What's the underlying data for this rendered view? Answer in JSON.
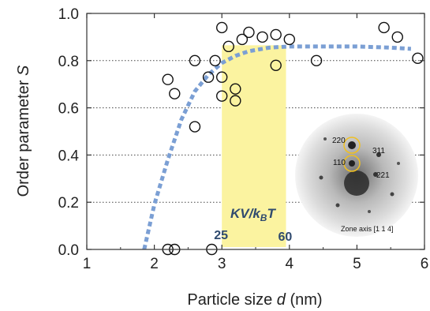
{
  "chart_data": {
    "type": "scatter",
    "xlabel": "Particle size",
    "xlabel_symbol": "d",
    "xlabel_unit": "(nm)",
    "ylabel": "Order parameter",
    "ylabel_symbol": "S",
    "xlim": [
      1,
      6
    ],
    "ylim": [
      0.0,
      1.0
    ],
    "xticks": [
      "1",
      "2",
      "3",
      "4",
      "5",
      "6"
    ],
    "yticks": [
      "0.0",
      "0.2",
      "0.4",
      "0.6",
      "0.8",
      "1.0"
    ],
    "grid": "horizontal-dotted",
    "series": [
      {
        "style": "open-circles",
        "points": [
          [
            2.2,
            0.72
          ],
          [
            2.3,
            0.66
          ],
          [
            2.6,
            0.8
          ],
          [
            2.6,
            0.52
          ],
          [
            2.8,
            0.73
          ],
          [
            2.9,
            0.8
          ],
          [
            3.0,
            0.94
          ],
          [
            3.0,
            0.73
          ],
          [
            3.0,
            0.65
          ],
          [
            3.1,
            0.86
          ],
          [
            3.2,
            0.68
          ],
          [
            3.2,
            0.63
          ],
          [
            3.3,
            0.89
          ],
          [
            3.4,
            0.92
          ],
          [
            3.6,
            0.9
          ],
          [
            3.8,
            0.91
          ],
          [
            3.8,
            0.78
          ],
          [
            4.0,
            0.89
          ],
          [
            4.4,
            0.8
          ],
          [
            5.4,
            0.94
          ],
          [
            5.6,
            0.9
          ],
          [
            5.9,
            0.81
          ],
          [
            2.2,
            0.0
          ],
          [
            2.3,
            0.0
          ],
          [
            2.85,
            0.0
          ]
        ]
      },
      {
        "style": "dotted-fit-curve",
        "color": "#7b9fd4",
        "points": [
          [
            1.85,
            0.0
          ],
          [
            2.0,
            0.19
          ],
          [
            2.2,
            0.38
          ],
          [
            2.4,
            0.55
          ],
          [
            2.6,
            0.67
          ],
          [
            2.8,
            0.74
          ],
          [
            3.0,
            0.79
          ],
          [
            3.2,
            0.82
          ],
          [
            3.4,
            0.84
          ],
          [
            3.7,
            0.855
          ],
          [
            4.0,
            0.86
          ],
          [
            4.5,
            0.86
          ],
          [
            5.0,
            0.86
          ],
          [
            5.5,
            0.855
          ],
          [
            5.8,
            0.85
          ]
        ]
      }
    ],
    "band": {
      "x_range": [
        3.0,
        3.95
      ],
      "color": "#fbf3a0",
      "label_main": "KV/k",
      "label_sub": "B",
      "label_tail": "T",
      "left_value": "25",
      "right_value": "60"
    },
    "inset": {
      "caption": "Zone axis [1 1 4]",
      "spots": [
        "220",
        "110",
        "311",
        "221"
      ]
    }
  }
}
